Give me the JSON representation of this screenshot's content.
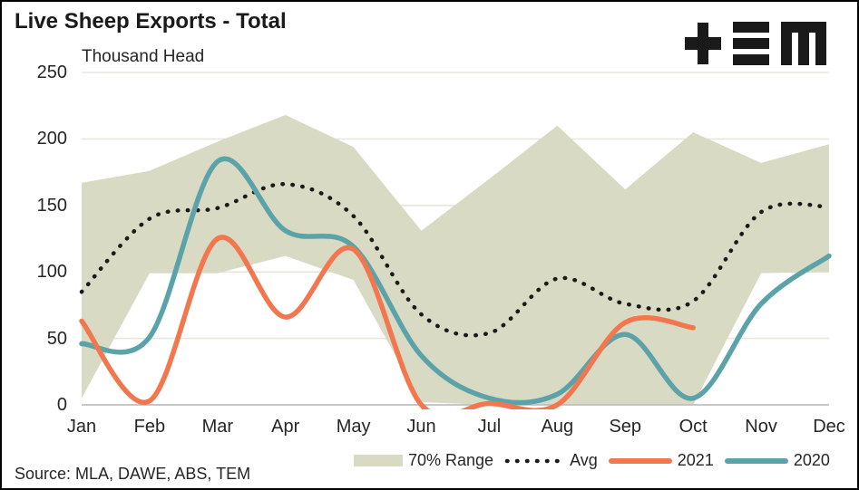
{
  "header": {
    "title": "Live Sheep Exports - Total",
    "units_label": "Thousand Head"
  },
  "logo": {
    "alt": "TEM"
  },
  "source": {
    "text": "Source: MLA, DAWE, ABS, TEM"
  },
  "colors": {
    "range_band": "#d8dac3",
    "avg_line": "#1a1a1a",
    "line_2021": "#f2774e",
    "line_2020": "#5ca3a9",
    "gridline": "#e8e7dc",
    "axis_line": "#bfbfbf",
    "text": "#262626"
  },
  "chart_data": {
    "type": "line",
    "title": "Live Sheep Exports - Total",
    "ylabel": "Thousand Head",
    "ylim": [
      0,
      250
    ],
    "yticks": [
      0,
      50,
      100,
      150,
      200,
      250
    ],
    "grid": true,
    "legend_position": "bottom",
    "categories": [
      "Jan",
      "Feb",
      "Mar",
      "Apr",
      "May",
      "Jun",
      "Jul",
      "Aug",
      "Sep",
      "Oct",
      "Nov",
      "Dec"
    ],
    "series": [
      {
        "name": "70% Range",
        "type": "band",
        "color": "#d8dac3",
        "upper": [
          167,
          176,
          198,
          218,
          194,
          131,
          170,
          210,
          162,
          205,
          182,
          196
        ],
        "lower": [
          5,
          99,
          99,
          112,
          94,
          2,
          0,
          0,
          0,
          0,
          99,
          100
        ]
      },
      {
        "name": "Avg",
        "type": "dotted-line",
        "color": "#1a1a1a",
        "values": [
          85,
          140,
          148,
          166,
          142,
          68,
          54,
          95,
          76,
          78,
          145,
          149
        ]
      },
      {
        "name": "2021",
        "type": "line",
        "color": "#f2774e",
        "values": [
          63,
          3,
          125,
          66,
          117,
          0,
          1,
          0,
          62,
          58,
          null,
          null
        ]
      },
      {
        "name": "2020",
        "type": "line",
        "color": "#5ca3a9",
        "values": [
          46,
          51,
          183,
          131,
          119,
          37,
          5,
          8,
          53,
          5,
          76,
          112
        ]
      }
    ]
  }
}
